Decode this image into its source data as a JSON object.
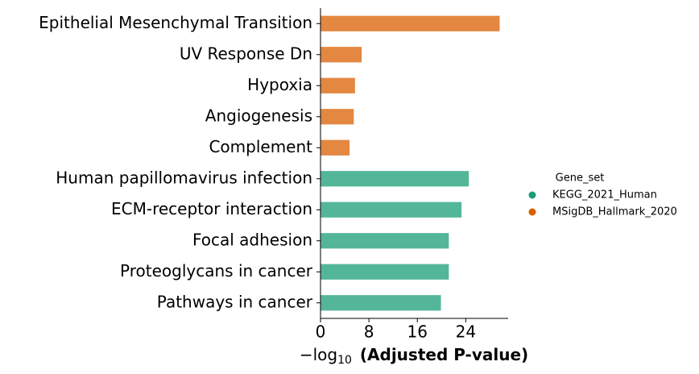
{
  "chart_data": {
    "type": "bar",
    "orientation": "horizontal",
    "categories": [
      "Epithelial Mesenchymal Transition",
      "UV Response Dn",
      "Hypoxia",
      "Angiogenesis",
      "Complement",
      "Human papillomavirus infection",
      "ECM-receptor interaction",
      "Focal adhesion",
      "Proteoglycans in cancer",
      "Pathways in cancer"
    ],
    "series": [
      {
        "name": "KEGG_2021_Human",
        "color": "#1b9e77",
        "values": [
          null,
          null,
          null,
          null,
          null,
          24.5,
          23.3,
          21.2,
          21.2,
          19.9
        ]
      },
      {
        "name": "MSigDB_Hallmark_2020",
        "color": "#d95f02",
        "values": [
          29.6,
          6.8,
          5.7,
          5.5,
          4.8,
          null,
          null,
          null,
          null,
          null
        ]
      }
    ],
    "xlim": [
      0,
      31
    ],
    "xticks": [
      0,
      8,
      16,
      24
    ],
    "xlabel": {
      "text": "−log",
      "subscript": "10",
      "bold": "(Adjusted P-value)"
    },
    "legend_title": "Gene_set",
    "legend": "right",
    "grid": false
  }
}
